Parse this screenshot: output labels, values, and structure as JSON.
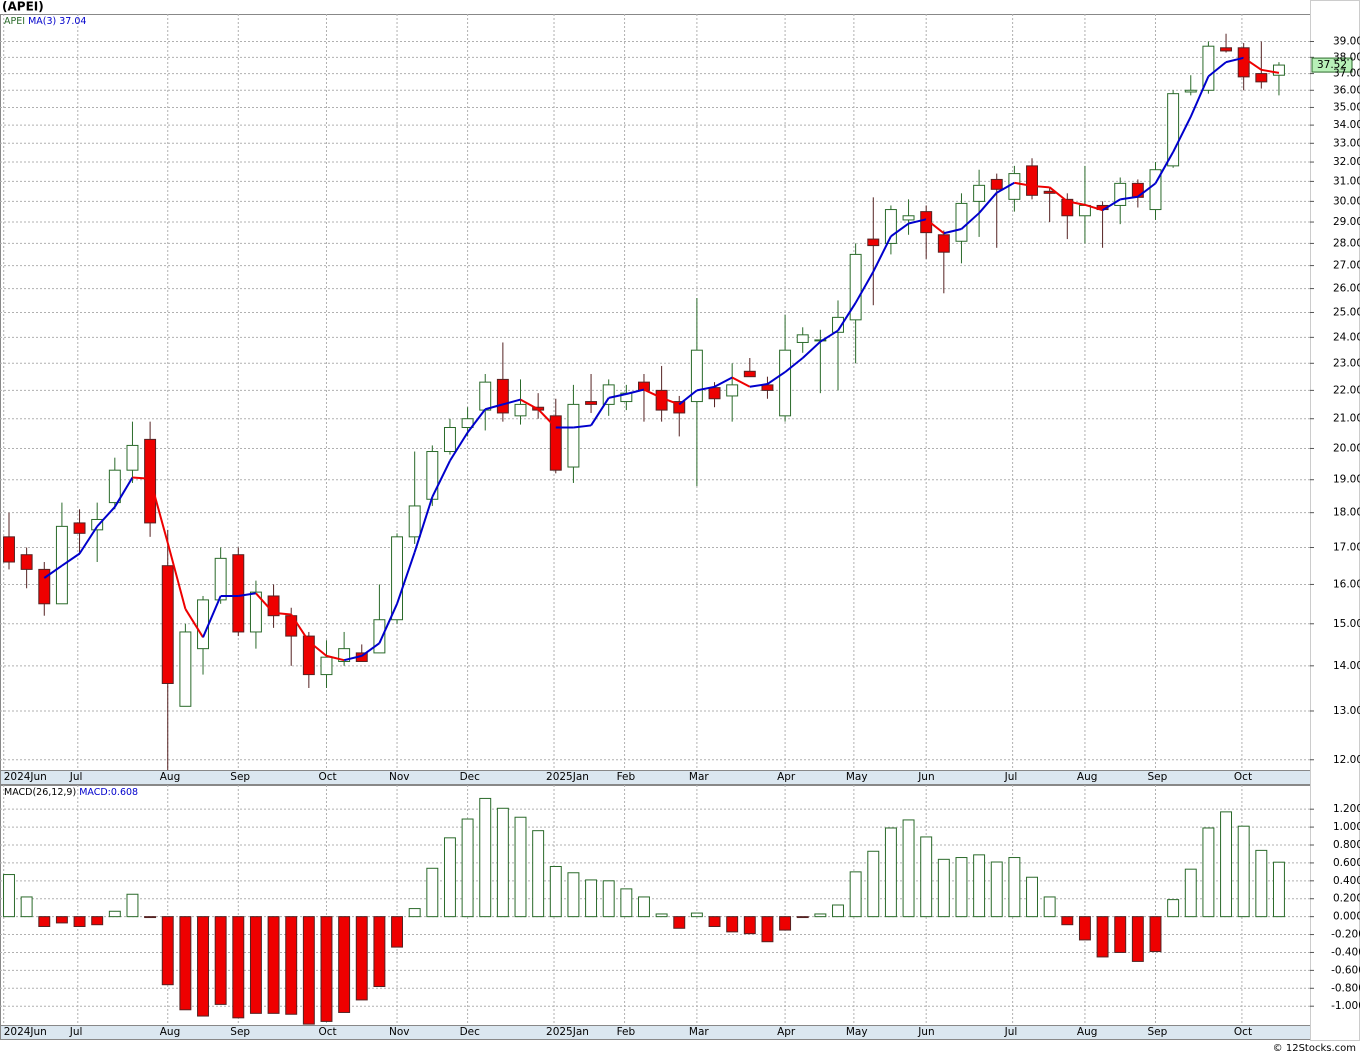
{
  "title": "(APEI)",
  "watermark": "© 12Stocks.com",
  "chart_data": [
    {
      "type": "candlestick",
      "symbol": "APEI",
      "ma_label": "MA(3)",
      "log_scale": true,
      "grid": true,
      "up_color": "#ffffff",
      "down_color": "#ee0000",
      "ma_up_color": "#0000cc",
      "ma_down_color": "#ee0000",
      "xlim": [
        -0.51,
        73.76
      ],
      "ylim": [
        11.8,
        40.8
      ],
      "xticks": [
        {
          "value": -0.3,
          "label": "2024Jun"
        },
        {
          "value": 3.9,
          "label": "Jul"
        },
        {
          "value": 9.0,
          "label": "Aug"
        },
        {
          "value": 13.0,
          "label": "Sep"
        },
        {
          "value": 18.0,
          "label": "Oct"
        },
        {
          "value": 22.0,
          "label": "Nov"
        },
        {
          "value": 26.0,
          "label": "Dec"
        },
        {
          "value": 30.9,
          "label": "2025Jan"
        },
        {
          "value": 34.9,
          "label": "Feb"
        },
        {
          "value": 39.0,
          "label": "Mar"
        },
        {
          "value": 44.0,
          "label": "Apr"
        },
        {
          "value": 47.9,
          "label": "May"
        },
        {
          "value": 52.0,
          "label": "Jun"
        },
        {
          "value": 56.9,
          "label": "Jul"
        },
        {
          "value": 61.0,
          "label": "Aug"
        },
        {
          "value": 65.0,
          "label": "Sep"
        },
        {
          "value": 69.9,
          "label": "Oct"
        }
      ],
      "yticks": [
        {
          "value": 12,
          "label": "12.00"
        },
        {
          "value": 13,
          "label": "13.00"
        },
        {
          "value": 14,
          "label": "14.00"
        },
        {
          "value": 15,
          "label": "15.00"
        },
        {
          "value": 16,
          "label": "16.00"
        },
        {
          "value": 17,
          "label": "17.00"
        },
        {
          "value": 18,
          "label": "18.00"
        },
        {
          "value": 19,
          "label": "19.00"
        },
        {
          "value": 20,
          "label": "20.00"
        },
        {
          "value": 21,
          "label": "21.00"
        },
        {
          "value": 22,
          "label": "22.00"
        },
        {
          "value": 23,
          "label": "23.00"
        },
        {
          "value": 24,
          "label": "24.00"
        },
        {
          "value": 25,
          "label": "25.00"
        },
        {
          "value": 26,
          "label": "26.00"
        },
        {
          "value": 27,
          "label": "27.00"
        },
        {
          "value": 28,
          "label": "28.00"
        },
        {
          "value": 29,
          "label": "29.00"
        },
        {
          "value": 30,
          "label": "30.00"
        },
        {
          "value": 31,
          "label": "31.00"
        },
        {
          "value": 32,
          "label": "32.00"
        },
        {
          "value": 33,
          "label": "33.00"
        },
        {
          "value": 34,
          "label": "34.00"
        },
        {
          "value": 35,
          "label": "35.00"
        },
        {
          "value": 36,
          "label": "36.00"
        },
        {
          "value": 37,
          "label": "37.00"
        },
        {
          "value": 38,
          "label": "38.00"
        },
        {
          "value": 39,
          "label": "39.00"
        }
      ],
      "open": [
        17.3,
        16.8,
        16.4,
        15.5,
        17.7,
        17.5,
        18.3,
        19.3,
        20.3,
        16.5,
        13.1,
        14.4,
        15.6,
        16.8,
        14.8,
        15.7,
        15.2,
        14.7,
        13.8,
        14.1,
        14.3,
        14.3,
        15.1,
        17.3,
        18.4,
        19.9,
        20.7,
        21.3,
        22.4,
        21.1,
        21.4,
        21.1,
        19.4,
        21.6,
        21.5,
        21.6,
        22.3,
        22.0,
        21.6,
        21.6,
        22.1,
        21.8,
        22.7,
        22.2,
        21.1,
        23.8,
        23.9,
        24.2,
        24.7,
        28.2,
        28.0,
        29.1,
        29.5,
        28.4,
        28.1,
        30.0,
        31.1,
        30.1,
        31.8,
        30.5,
        30.1,
        29.3,
        29.8,
        29.8,
        30.9,
        29.6,
        31.8,
        35.9,
        36.0,
        38.6,
        38.6,
        37.0,
        36.9
      ],
      "high": [
        18.0,
        17.0,
        16.6,
        18.3,
        18.1,
        18.3,
        19.7,
        20.9,
        20.9,
        17.5,
        15.0,
        15.7,
        17.0,
        17.0,
        16.1,
        16.0,
        15.4,
        14.8,
        14.6,
        14.8,
        14.5,
        16.0,
        17.4,
        19.9,
        20.1,
        21.0,
        21.4,
        22.6,
        23.8,
        22.4,
        21.9,
        21.7,
        22.2,
        22.6,
        22.4,
        22.2,
        22.6,
        22.9,
        21.8,
        25.6,
        22.3,
        23.0,
        23.2,
        22.5,
        24.9,
        24.4,
        24.3,
        25.5,
        28.0,
        30.2,
        29.8,
        30.1,
        29.8,
        28.6,
        30.4,
        31.6,
        31.4,
        31.8,
        32.2,
        30.7,
        30.4,
        31.8,
        30.0,
        31.2,
        31.1,
        32.0,
        36.0,
        36.9,
        39.0,
        39.5,
        38.9,
        39.0,
        37.7
      ],
      "low": [
        16.4,
        15.9,
        15.2,
        15.5,
        16.8,
        16.6,
        18.1,
        18.9,
        17.3,
        11.8,
        13.1,
        13.8,
        15.5,
        14.7,
        14.4,
        14.9,
        14.0,
        13.5,
        13.5,
        14.0,
        14.1,
        14.3,
        15.0,
        17.1,
        18.2,
        19.8,
        20.4,
        20.6,
        20.9,
        20.8,
        21.0,
        19.2,
        18.9,
        21.2,
        21.1,
        21.3,
        20.9,
        20.9,
        20.4,
        18.8,
        21.4,
        20.9,
        22.5,
        21.7,
        20.9,
        23.4,
        21.9,
        22.0,
        23.0,
        25.3,
        27.5,
        28.4,
        27.3,
        25.8,
        27.1,
        28.3,
        27.8,
        29.5,
        30.1,
        29.0,
        28.2,
        28.0,
        27.8,
        28.9,
        29.7,
        29.1,
        31.7,
        35.7,
        35.8,
        38.3,
        36.0,
        36.1,
        35.7
      ],
      "close": [
        16.6,
        16.4,
        15.5,
        17.6,
        17.4,
        17.8,
        19.3,
        20.1,
        17.7,
        13.6,
        14.8,
        15.6,
        16.7,
        14.8,
        15.8,
        15.2,
        14.7,
        13.8,
        14.2,
        14.4,
        14.1,
        15.1,
        17.3,
        18.2,
        19.9,
        20.7,
        21.0,
        22.3,
        21.2,
        21.5,
        21.3,
        19.3,
        21.5,
        21.5,
        22.2,
        21.9,
        22.0,
        21.3,
        21.2,
        23.5,
        21.7,
        22.2,
        22.5,
        22.0,
        23.5,
        24.1,
        23.9,
        24.8,
        27.5,
        27.9,
        29.6,
        29.3,
        28.5,
        27.6,
        29.9,
        30.8,
        30.6,
        31.4,
        30.3,
        30.4,
        29.3,
        29.8,
        29.6,
        30.9,
        30.2,
        31.6,
        35.8,
        36.0,
        38.7,
        38.4,
        36.8,
        36.5,
        37.52
      ],
      "ma": [
        null,
        null,
        16.17,
        16.5,
        16.83,
        17.6,
        18.17,
        19.07,
        19.03,
        17.13,
        15.37,
        14.67,
        15.7,
        15.7,
        15.77,
        15.27,
        15.23,
        14.57,
        14.23,
        14.13,
        14.23,
        14.53,
        15.5,
        16.87,
        18.47,
        19.6,
        20.53,
        21.33,
        21.5,
        21.67,
        21.33,
        20.7,
        20.7,
        20.77,
        21.73,
        21.87,
        22.03,
        21.73,
        21.5,
        22.0,
        22.13,
        22.47,
        22.13,
        22.23,
        22.67,
        23.2,
        23.83,
        24.27,
        25.4,
        26.73,
        28.33,
        28.93,
        29.13,
        28.47,
        28.67,
        29.43,
        30.43,
        30.93,
        30.77,
        30.7,
        30.0,
        29.83,
        29.57,
        30.1,
        30.23,
        30.9,
        32.53,
        34.47,
        36.83,
        37.7,
        37.97,
        37.23,
        37.04
      ]
    },
    {
      "type": "bar",
      "label": "MACD(26,12,9)",
      "value_prefix": "MACD:",
      "grid": true,
      "up_color": "#ffffff",
      "down_color": "#ee0000",
      "ylim": [
        -1.21,
        1.47
      ],
      "yticks": [
        {
          "value": -1.0,
          "label": "-1.000"
        },
        {
          "value": -0.8,
          "label": "-0.800"
        },
        {
          "value": -0.6,
          "label": "-0.600"
        },
        {
          "value": -0.4,
          "label": "-0.400"
        },
        {
          "value": -0.2,
          "label": "-0.200"
        },
        {
          "value": 0,
          "label": "0.000"
        },
        {
          "value": 0.2,
          "label": "0.200"
        },
        {
          "value": 0.4,
          "label": "0.400"
        },
        {
          "value": 0.6,
          "label": "0.600"
        },
        {
          "value": 0.8,
          "label": "0.800"
        },
        {
          "value": 1.0,
          "label": "1.000"
        },
        {
          "value": 1.2,
          "label": "1.200"
        }
      ],
      "values": [
        0.47,
        0.22,
        -0.11,
        -0.07,
        -0.11,
        -0.09,
        0.06,
        0.25,
        -0.01,
        -0.76,
        -1.04,
        -1.11,
        -0.98,
        -1.13,
        -1.08,
        -1.08,
        -1.09,
        -1.2,
        -1.17,
        -1.07,
        -0.93,
        -0.78,
        -0.34,
        0.09,
        0.54,
        0.88,
        1.09,
        1.32,
        1.21,
        1.11,
        0.96,
        0.56,
        0.49,
        0.41,
        0.4,
        0.31,
        0.22,
        0.03,
        -0.13,
        0.04,
        -0.11,
        -0.17,
        -0.19,
        -0.28,
        -0.15,
        -0.01,
        0.03,
        0.13,
        0.5,
        0.73,
        0.99,
        1.08,
        0.89,
        0.64,
        0.66,
        0.69,
        0.61,
        0.66,
        0.44,
        0.22,
        -0.09,
        -0.26,
        -0.45,
        -0.4,
        -0.5,
        -0.39,
        0.19,
        0.53,
        0.99,
        1.17,
        1.01,
        0.74,
        0.608
      ]
    }
  ]
}
